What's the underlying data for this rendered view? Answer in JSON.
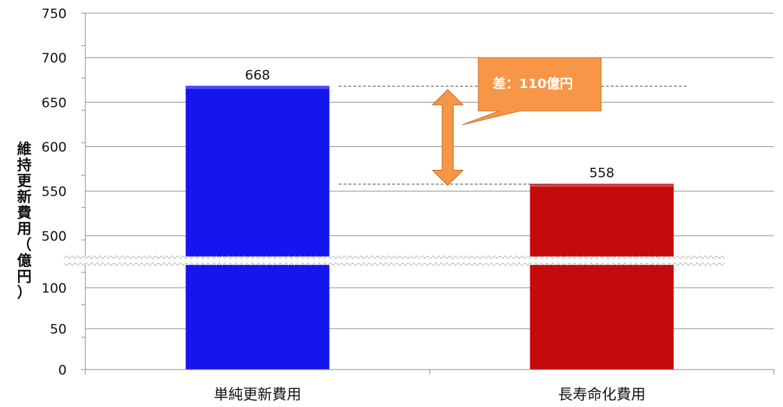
{
  "chart_data": {
    "type": "bar",
    "categories": [
      "単純更新費用",
      "長寿命化費用"
    ],
    "values": [
      668,
      558
    ],
    "data_labels": [
      "668",
      "558"
    ],
    "colors": [
      "#1515ee",
      "#c40a0a"
    ],
    "ylabel": "維持更新費用（億円）",
    "ylabel_chars": [
      "維",
      "持",
      "更",
      "新",
      "費",
      "用",
      "（",
      "億",
      "円",
      "）"
    ],
    "y_ticks_lower": [
      0,
      50,
      100
    ],
    "y_ticks_upper": [
      500,
      550,
      600,
      650,
      700,
      750
    ],
    "lower_range": [
      0,
      150
    ],
    "upper_range": [
      475,
      750
    ],
    "axis_break": true,
    "grid": true,
    "annotation": {
      "text": "差：110億円",
      "from": 668,
      "to": 558,
      "color": "#f79646"
    }
  }
}
